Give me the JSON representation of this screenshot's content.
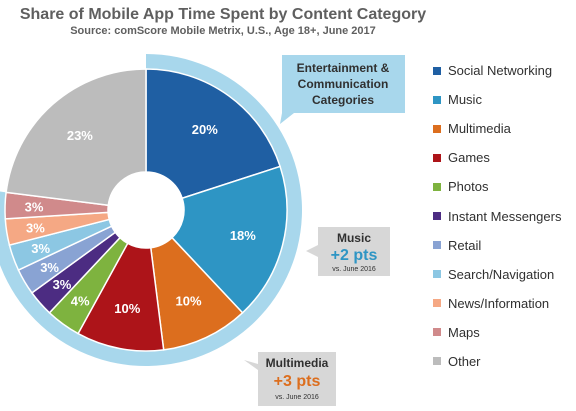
{
  "chart_data": {
    "type": "pie",
    "title": "Share of Mobile App Time Spent by Content Category",
    "subtitle": "Source: comScore Mobile Metrix, U.S., Age 18+, June 2017",
    "categories": [
      "Social Networking",
      "Music",
      "Multimedia",
      "Games",
      "Photos",
      "Instant Messengers",
      "Retail",
      "Search/Navigation",
      "News/Information",
      "Maps",
      "Other"
    ],
    "values": [
      20,
      18,
      10,
      10,
      4,
      3,
      3,
      3,
      3,
      3,
      23
    ],
    "labels": [
      "20%",
      "18%",
      "10%",
      "10%",
      "4%",
      "3%",
      "3%",
      "3%",
      "3%",
      "3%",
      "23%"
    ],
    "colors": [
      "#1f5fa3",
      "#2e95c4",
      "#dc6e1e",
      "#ad1419",
      "#7eb33f",
      "#4c2c82",
      "#89a3d3",
      "#8cc7e3",
      "#f5a884",
      "#d08a8b",
      "#bcbcbc"
    ],
    "legend_position": "right",
    "annotations": {
      "group_callout": "Entertainment & Communication Categories",
      "music": {
        "title": "Music",
        "change": "+2 pts",
        "note": "vs. June 2016"
      },
      "multimedia": {
        "title": "Multimedia",
        "change": "+3 pts",
        "note": "vs. June 2016"
      }
    }
  }
}
